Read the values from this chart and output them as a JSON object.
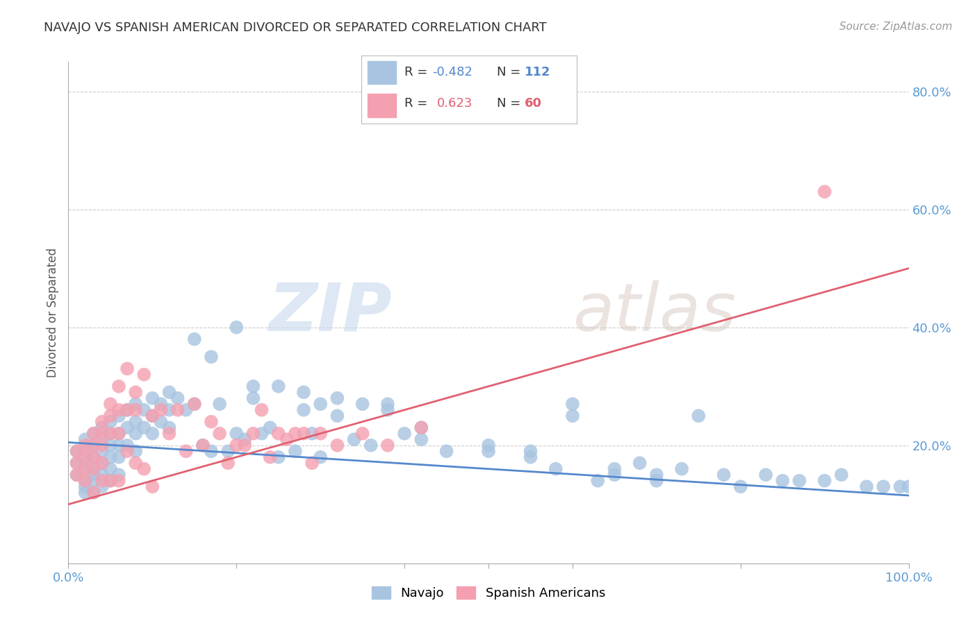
{
  "title": "NAVAJO VS SPANISH AMERICAN DIVORCED OR SEPARATED CORRELATION CHART",
  "source": "Source: ZipAtlas.com",
  "ylabel": "Divorced or Separated",
  "xlim": [
    0.0,
    1.0
  ],
  "ylim": [
    0.0,
    0.85
  ],
  "navajo_R": -0.482,
  "navajo_N": 112,
  "spanish_R": 0.623,
  "spanish_N": 60,
  "navajo_color": "#a8c4e0",
  "spanish_color": "#f4a0b0",
  "navajo_line_color": "#5588cc",
  "spanish_line_color": "#e06070",
  "legend_label_navajo": "Navajo",
  "legend_label_spanish": "Spanish Americans",
  "watermark_zip": "ZIP",
  "watermark_atlas": "atlas",
  "grid_color": "#cccccc",
  "background_color": "#ffffff",
  "navajo_x": [
    0.01,
    0.01,
    0.01,
    0.02,
    0.02,
    0.02,
    0.02,
    0.02,
    0.02,
    0.02,
    0.03,
    0.03,
    0.03,
    0.03,
    0.03,
    0.03,
    0.03,
    0.04,
    0.04,
    0.04,
    0.04,
    0.04,
    0.04,
    0.05,
    0.05,
    0.05,
    0.05,
    0.05,
    0.05,
    0.06,
    0.06,
    0.06,
    0.06,
    0.06,
    0.07,
    0.07,
    0.07,
    0.08,
    0.08,
    0.08,
    0.08,
    0.09,
    0.09,
    0.1,
    0.1,
    0.1,
    0.11,
    0.11,
    0.12,
    0.12,
    0.12,
    0.13,
    0.14,
    0.15,
    0.16,
    0.17,
    0.18,
    0.19,
    0.2,
    0.21,
    0.22,
    0.23,
    0.24,
    0.25,
    0.27,
    0.28,
    0.29,
    0.3,
    0.32,
    0.34,
    0.36,
    0.38,
    0.4,
    0.42,
    0.45,
    0.5,
    0.55,
    0.58,
    0.6,
    0.63,
    0.65,
    0.68,
    0.7,
    0.73,
    0.75,
    0.78,
    0.8,
    0.83,
    0.85,
    0.87,
    0.9,
    0.92,
    0.95,
    0.97,
    0.99,
    1.0,
    0.17,
    0.22,
    0.15,
    0.2,
    0.25,
    0.28,
    0.3,
    0.32,
    0.35,
    0.38,
    0.42,
    0.5,
    0.55,
    0.6,
    0.65,
    0.7
  ],
  "navajo_y": [
    0.19,
    0.17,
    0.15,
    0.21,
    0.19,
    0.17,
    0.16,
    0.14,
    0.13,
    0.12,
    0.22,
    0.2,
    0.18,
    0.16,
    0.15,
    0.14,
    0.12,
    0.23,
    0.21,
    0.19,
    0.17,
    0.15,
    0.13,
    0.24,
    0.22,
    0.2,
    0.18,
    0.16,
    0.14,
    0.25,
    0.22,
    0.2,
    0.18,
    0.15,
    0.26,
    0.23,
    0.2,
    0.27,
    0.24,
    0.22,
    0.19,
    0.26,
    0.23,
    0.28,
    0.25,
    0.22,
    0.27,
    0.24,
    0.29,
    0.26,
    0.23,
    0.28,
    0.26,
    0.27,
    0.2,
    0.19,
    0.27,
    0.19,
    0.22,
    0.21,
    0.28,
    0.22,
    0.23,
    0.18,
    0.19,
    0.26,
    0.22,
    0.18,
    0.25,
    0.21,
    0.2,
    0.27,
    0.22,
    0.21,
    0.19,
    0.19,
    0.18,
    0.16,
    0.25,
    0.14,
    0.15,
    0.17,
    0.14,
    0.16,
    0.25,
    0.15,
    0.13,
    0.15,
    0.14,
    0.14,
    0.14,
    0.15,
    0.13,
    0.13,
    0.13,
    0.13,
    0.35,
    0.3,
    0.38,
    0.4,
    0.3,
    0.29,
    0.27,
    0.28,
    0.27,
    0.26,
    0.23,
    0.2,
    0.19,
    0.27,
    0.16,
    0.15
  ],
  "spanish_x": [
    0.01,
    0.01,
    0.01,
    0.02,
    0.02,
    0.02,
    0.02,
    0.03,
    0.03,
    0.03,
    0.03,
    0.03,
    0.04,
    0.04,
    0.04,
    0.04,
    0.04,
    0.05,
    0.05,
    0.05,
    0.05,
    0.06,
    0.06,
    0.06,
    0.06,
    0.07,
    0.07,
    0.07,
    0.08,
    0.08,
    0.08,
    0.09,
    0.09,
    0.1,
    0.1,
    0.11,
    0.12,
    0.13,
    0.14,
    0.15,
    0.16,
    0.17,
    0.18,
    0.19,
    0.2,
    0.21,
    0.22,
    0.23,
    0.24,
    0.25,
    0.26,
    0.27,
    0.28,
    0.29,
    0.3,
    0.32,
    0.35,
    0.38,
    0.42,
    0.9
  ],
  "spanish_y": [
    0.19,
    0.17,
    0.15,
    0.2,
    0.18,
    0.16,
    0.14,
    0.22,
    0.2,
    0.18,
    0.16,
    0.12,
    0.24,
    0.22,
    0.2,
    0.17,
    0.14,
    0.27,
    0.25,
    0.22,
    0.14,
    0.3,
    0.26,
    0.22,
    0.14,
    0.33,
    0.26,
    0.19,
    0.29,
    0.26,
    0.17,
    0.32,
    0.16,
    0.25,
    0.13,
    0.26,
    0.22,
    0.26,
    0.19,
    0.27,
    0.2,
    0.24,
    0.22,
    0.17,
    0.2,
    0.2,
    0.22,
    0.26,
    0.18,
    0.22,
    0.21,
    0.22,
    0.22,
    0.17,
    0.22,
    0.2,
    0.22,
    0.2,
    0.23,
    0.63
  ],
  "navajo_trend_x": [
    0.0,
    1.0
  ],
  "navajo_trend_y": [
    0.205,
    0.115
  ],
  "spanish_trend_x": [
    0.0,
    1.0
  ],
  "spanish_trend_y": [
    0.1,
    0.5
  ]
}
